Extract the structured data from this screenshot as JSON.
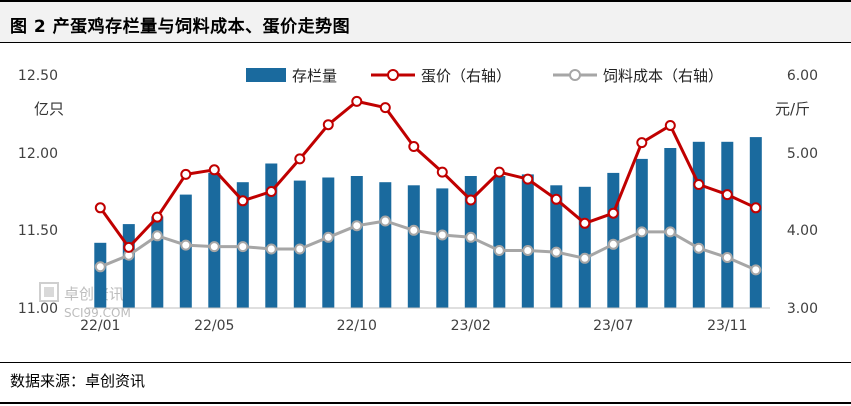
{
  "header": {
    "title": "图 2  产蛋鸡存栏量与饲料成本、蛋价走势图"
  },
  "footer": {
    "source": "数据来源：卓创资讯"
  },
  "watermark": {
    "line1": "卓创资讯",
    "line2": "SCI99.COM"
  },
  "chart_data": {
    "type": "bar+line",
    "left_unit": "亿只",
    "right_unit": "元/斤",
    "ylim_left": [
      11.0,
      12.5
    ],
    "yticks_left": [
      "11.00",
      "11.50",
      "12.00",
      "12.50"
    ],
    "ylim_right": [
      3.0,
      6.0
    ],
    "yticks_right": [
      "3.00",
      "4.00",
      "5.00",
      "6.00"
    ],
    "x_tick_labels": [
      {
        "index": 0,
        "label": "22/01"
      },
      {
        "index": 4,
        "label": "22/05"
      },
      {
        "index": 9,
        "label": "22/10"
      },
      {
        "index": 13,
        "label": "23/02"
      },
      {
        "index": 18,
        "label": "23/07"
      },
      {
        "index": 22,
        "label": "23/11"
      }
    ],
    "categories_count": 24,
    "series": [
      {
        "name": "存栏量",
        "type": "bar",
        "axis": "left",
        "color": "#1a6a9e",
        "values": [
          11.42,
          11.54,
          11.59,
          11.73,
          11.87,
          11.81,
          11.93,
          11.82,
          11.84,
          11.85,
          11.81,
          11.79,
          11.77,
          11.85,
          11.85,
          11.86,
          11.79,
          11.78,
          11.87,
          11.96,
          12.03,
          12.07,
          12.07,
          12.1
        ]
      },
      {
        "name": "蛋价（右轴）",
        "type": "line",
        "axis": "right",
        "color": "#c00000",
        "values": [
          4.29,
          3.78,
          4.17,
          4.72,
          4.78,
          4.38,
          4.5,
          4.92,
          5.36,
          5.66,
          5.58,
          5.08,
          4.75,
          4.39,
          4.75,
          4.66,
          4.4,
          4.09,
          4.22,
          5.13,
          5.35,
          4.59,
          4.46,
          4.29
        ]
      },
      {
        "name": "饲料成本（右轴）",
        "type": "line",
        "axis": "right",
        "color": "#a6a6a6",
        "values": [
          3.53,
          3.68,
          3.93,
          3.81,
          3.79,
          3.79,
          3.76,
          3.76,
          3.91,
          4.06,
          4.12,
          4.0,
          3.94,
          3.91,
          3.74,
          3.74,
          3.72,
          3.64,
          3.82,
          3.98,
          3.98,
          3.77,
          3.65,
          3.49
        ]
      }
    ],
    "legend": "top"
  }
}
